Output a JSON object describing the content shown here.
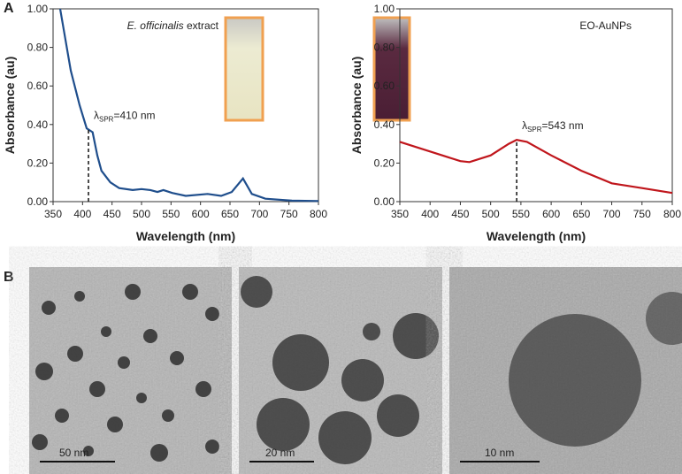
{
  "panel_labels": [
    "A",
    "B"
  ],
  "chart_data": [
    {
      "type": "line",
      "x_label": "Wavelength (nm)",
      "y_label": "Absorbance (au)",
      "inset_label": {
        "italic": "E. officinalis",
        "text": " extract"
      },
      "annotation": {
        "symbol": "λ",
        "subscript": "SPR",
        "text": "=410 nm",
        "x": 410
      },
      "xlim": [
        350,
        800
      ],
      "ylim": [
        0,
        1
      ],
      "xticks": [
        350,
        400,
        450,
        500,
        550,
        600,
        650,
        700,
        750,
        800
      ],
      "yticks": [
        {
          "value": 0,
          "label": "0.00"
        },
        {
          "value": 0.2,
          "label": "0.20"
        },
        {
          "value": 0.4,
          "label": "0.40"
        },
        {
          "value": 0.6,
          "label": "0.60"
        },
        {
          "value": 0.8,
          "label": "0.80"
        },
        {
          "value": 1,
          "label": "1.00"
        }
      ],
      "series": [
        {
          "color": "#1f4e8c",
          "x": [
            362,
            380,
            395,
            407,
            417,
            425,
            432,
            447,
            462,
            485,
            500,
            515,
            527,
            537,
            552,
            575,
            612,
            635,
            653,
            672,
            687,
            710,
            755,
            800
          ],
          "values": [
            1.0,
            0.68,
            0.5,
            0.38,
            0.36,
            0.24,
            0.16,
            0.1,
            0.07,
            0.06,
            0.065,
            0.06,
            0.05,
            0.06,
            0.045,
            0.03,
            0.04,
            0.03,
            0.05,
            0.12,
            0.04,
            0.015,
            0.005,
            0.003
          ]
        }
      ]
    },
    {
      "type": "line",
      "x_label": "Wavelength (nm)",
      "y_label": "Absorbance (au)",
      "inset_label": {
        "italic": "",
        "text": "EO-AuNPs"
      },
      "annotation": {
        "symbol": "λ",
        "subscript": "SPR",
        "text": "=543 nm",
        "x": 543
      },
      "xlim": [
        350,
        800
      ],
      "ylim": [
        0,
        1
      ],
      "xticks": [
        350,
        400,
        450,
        500,
        550,
        600,
        650,
        700,
        750,
        800
      ],
      "yticks": [
        {
          "value": 0,
          "label": "0.00"
        },
        {
          "value": 0.2,
          "label": "0.20"
        },
        {
          "value": 0.4,
          "label": "0.40"
        },
        {
          "value": 0.6,
          "label": "0.60"
        },
        {
          "value": 0.8,
          "label": "0.80"
        },
        {
          "value": 1,
          "label": "1.00"
        }
      ],
      "series": [
        {
          "color": "#c0161c",
          "x": [
            350,
            400,
            450,
            465,
            500,
            530,
            543,
            560,
            600,
            650,
            700,
            750,
            800
          ],
          "values": [
            0.31,
            0.26,
            0.21,
            0.205,
            0.24,
            0.3,
            0.32,
            0.31,
            0.24,
            0.16,
            0.095,
            0.07,
            0.045
          ]
        }
      ]
    }
  ],
  "tem_scale_bars": [
    "50 nm",
    "20 nm",
    "10 nm"
  ]
}
